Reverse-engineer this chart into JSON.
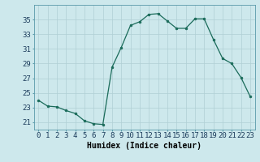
{
  "x": [
    0,
    1,
    2,
    3,
    4,
    5,
    6,
    7,
    8,
    9,
    10,
    11,
    12,
    13,
    14,
    15,
    16,
    17,
    18,
    19,
    20,
    21,
    22,
    23
  ],
  "y": [
    24.0,
    23.2,
    23.1,
    22.6,
    22.2,
    21.2,
    20.8,
    20.7,
    28.5,
    31.2,
    34.2,
    34.7,
    35.7,
    35.8,
    34.8,
    33.8,
    33.8,
    35.1,
    35.1,
    32.3,
    29.7,
    29.0,
    27.1,
    24.5
  ],
  "xlabel": "Humidex (Indice chaleur)",
  "ylim": [
    20,
    37
  ],
  "xlim": [
    -0.5,
    23.5
  ],
  "yticks": [
    21,
    23,
    25,
    27,
    29,
    31,
    33,
    35
  ],
  "xticks": [
    0,
    1,
    2,
    3,
    4,
    5,
    6,
    7,
    8,
    9,
    10,
    11,
    12,
    13,
    14,
    15,
    16,
    17,
    18,
    19,
    20,
    21,
    22,
    23
  ],
  "line_color": "#1a6b5a",
  "marker_color": "#1a6b5a",
  "bg_color": "#cde8ec",
  "grid_color": "#b0cfd5",
  "xlabel_fontsize": 7,
  "tick_fontsize": 6.5
}
